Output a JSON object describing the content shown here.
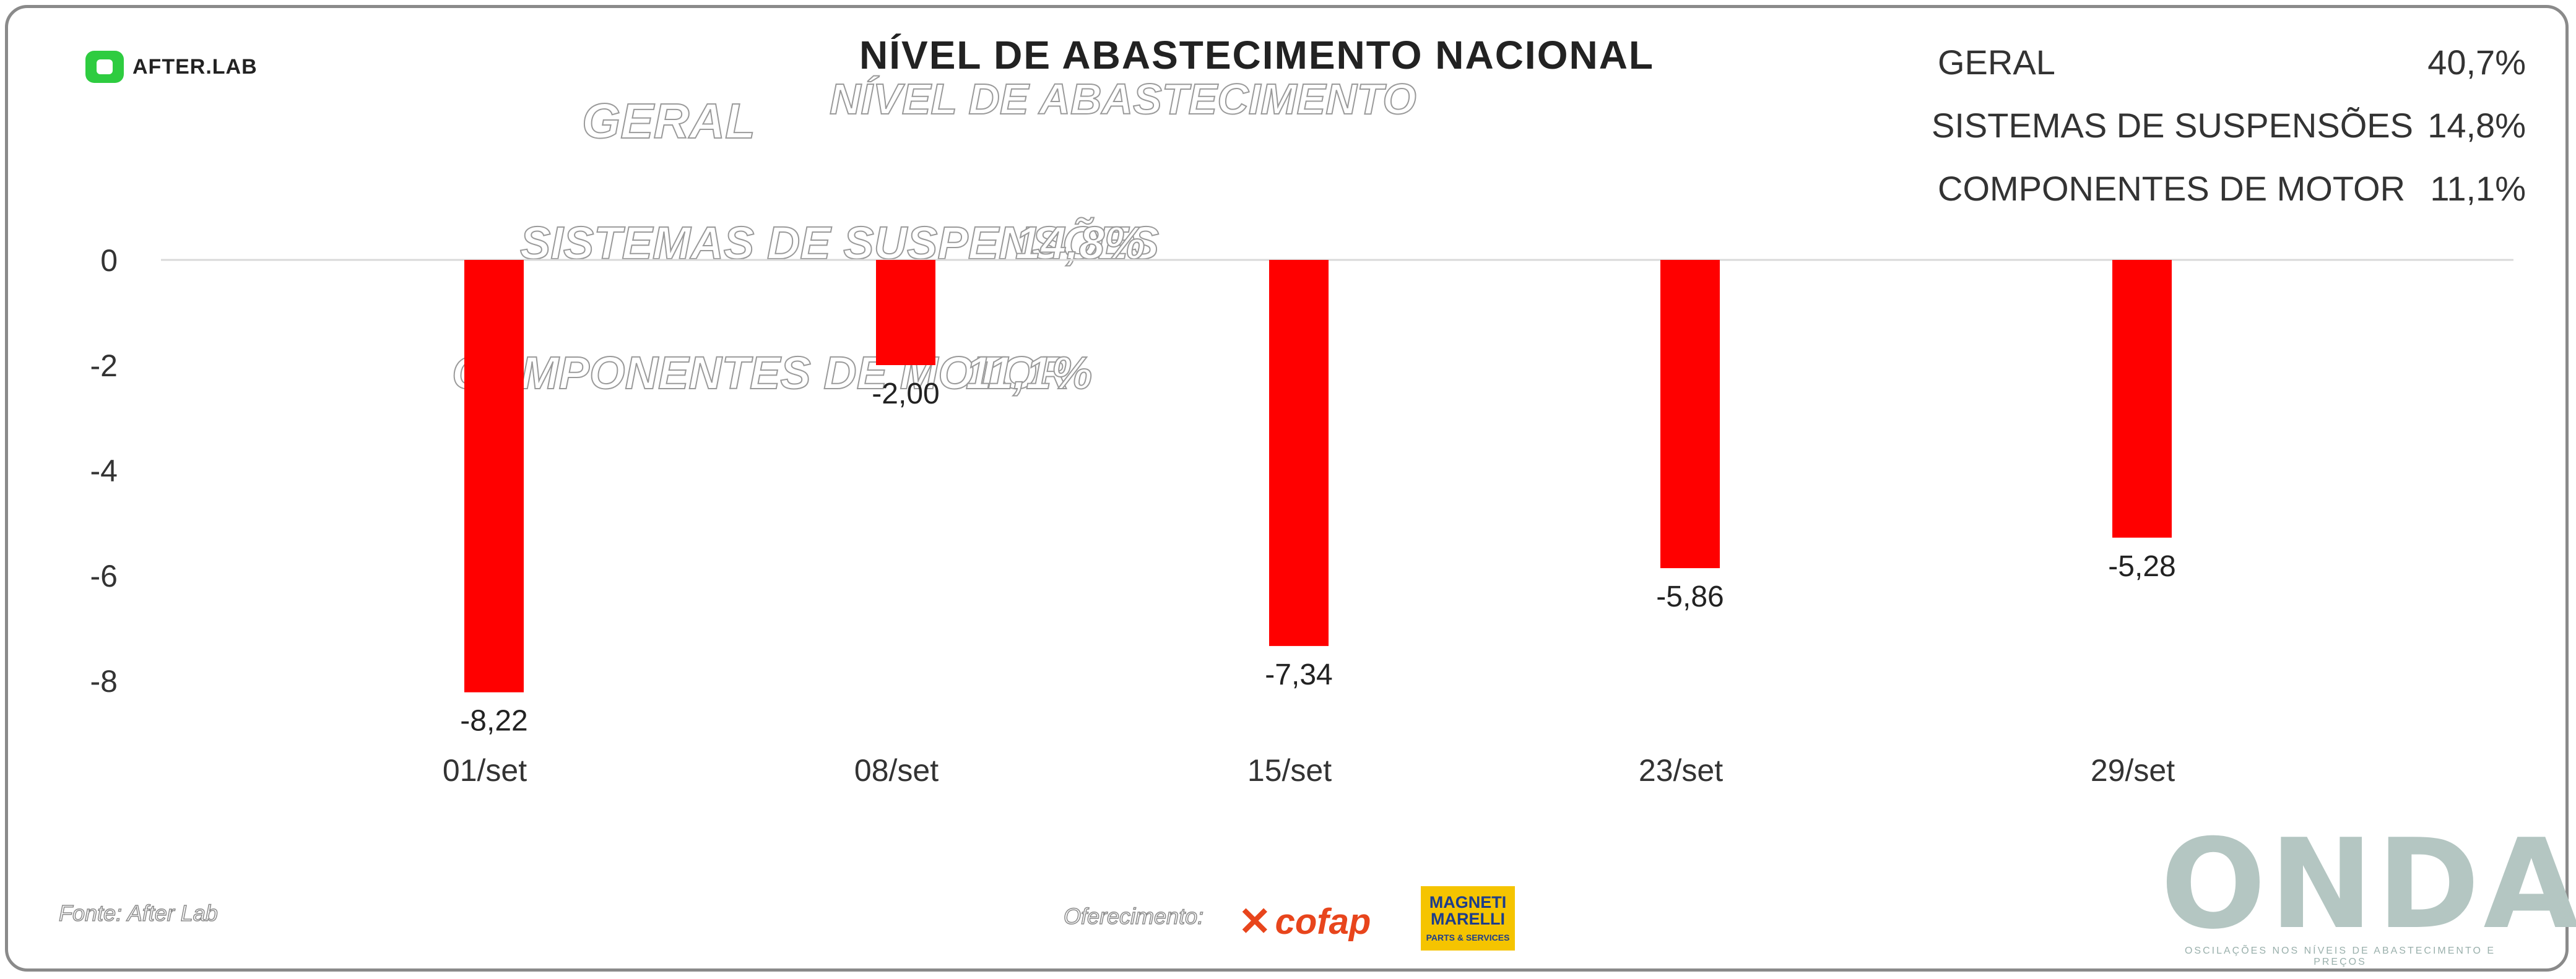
{
  "title": "NÍVEL DE ABASTECIMENTO NACIONAL",
  "brand": {
    "afterlab": "AFTER.LAB",
    "onda": "ONDA",
    "onda_tagline": "OSCILAÇÕES NOS NÍVEIS DE ABASTECIMENTO E PREÇOS"
  },
  "summary": [
    {
      "label": "GERAL",
      "value": "40,7%"
    },
    {
      "label": "SISTEMAS DE SUSPENSÕES",
      "value": "14,8%"
    },
    {
      "label": "COMPONENTES DE MOTOR",
      "value": "11,1%"
    }
  ],
  "ghost_text": {
    "geral": "GERAL",
    "nivel": "NÍVEL DE ABASTECIMENTO",
    "suspensoes": "SISTEMAS DE SUSPENSÕES",
    "suspensoes_val": "14,8%",
    "motor": "COMPONENTES DE MOTOR",
    "motor_val": "11,1%"
  },
  "footer": {
    "source": "Fonte: After Lab",
    "sponsor_label": "Oferecimento:",
    "cofap": "cofap",
    "marelli_line1": "MAGNETI",
    "marelli_line2": "MARELLI",
    "marelli_line3": "PARTS & SERVICES"
  },
  "colors": {
    "bar": "#ff0000",
    "gridline": "#d9d9d9",
    "onda": "#b4c6c2"
  },
  "chart_data": {
    "type": "bar",
    "title": "NÍVEL DE ABASTECIMENTO NACIONAL",
    "categories": [
      "01/set",
      "08/set",
      "15/set",
      "23/set",
      "29/set"
    ],
    "values": [
      -8.22,
      -2.0,
      -7.34,
      -5.86,
      -5.28
    ],
    "value_labels": [
      "-8,22",
      "-2,00",
      "-7,34",
      "-5,86",
      "-5,28"
    ],
    "y_ticks": [
      0,
      -2,
      -4,
      -6,
      -8
    ],
    "ylim": [
      -8,
      0
    ],
    "grid": false
  }
}
